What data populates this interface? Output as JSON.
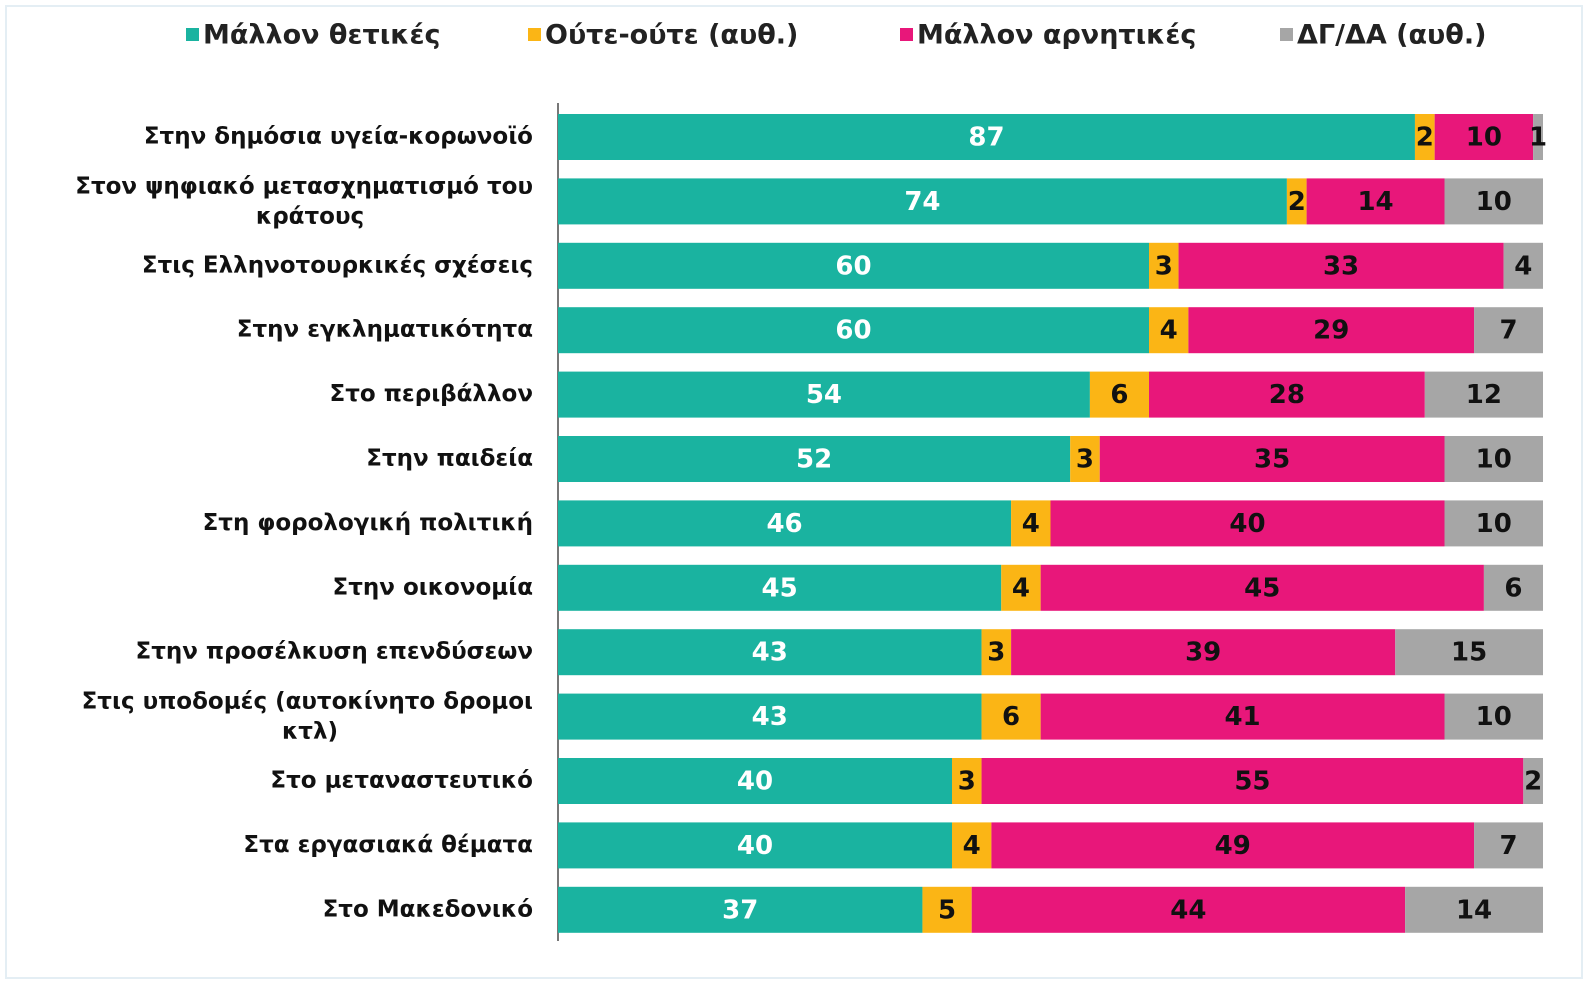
{
  "chart_data": {
    "type": "stacked-barh",
    "categories": [
      "Στην δημόσια υγεία-κορωνοϊό",
      "Στον ψηφιακό μετασχηματισμό του κράτους",
      "Στις Ελληνοτουρκικές σχέσεις",
      "Στην εγκληματικότητα",
      "Στο περιβάλλον",
      "Στην παιδεία",
      "Στη φορολογική πολιτική",
      "Στην οικονομία",
      "Στην προσέλκυση επενδύσεων",
      "Στις υποδομές (αυτοκίνητο δρομοι κτλ)",
      "Στο μεταναστευτικό",
      "Στα εργασιακά θέματα",
      "Στο Μακεδονικό"
    ],
    "series": [
      {
        "name": "Μάλλον θετικές",
        "color": "#1ab3a0",
        "values": [
          87,
          74,
          60,
          60,
          54,
          52,
          46,
          45,
          43,
          43,
          40,
          40,
          37
        ]
      },
      {
        "name": "Ούτε-ούτε  (αυθ.)",
        "color": "#fbb515",
        "values": [
          2,
          2,
          3,
          4,
          6,
          3,
          4,
          4,
          3,
          6,
          3,
          4,
          5
        ]
      },
      {
        "name": "Μάλλον αρνητικές",
        "color": "#e8177a",
        "values": [
          10,
          14,
          33,
          29,
          28,
          35,
          40,
          45,
          39,
          41,
          55,
          49,
          44
        ]
      },
      {
        "name": "ΔΓ/ΔΑ (αυθ.)",
        "color": "#a6a6a6",
        "values": [
          1,
          10,
          4,
          7,
          12,
          10,
          10,
          6,
          15,
          10,
          2,
          7,
          14
        ]
      }
    ],
    "xlim": [
      0,
      100
    ],
    "legend": "top"
  }
}
